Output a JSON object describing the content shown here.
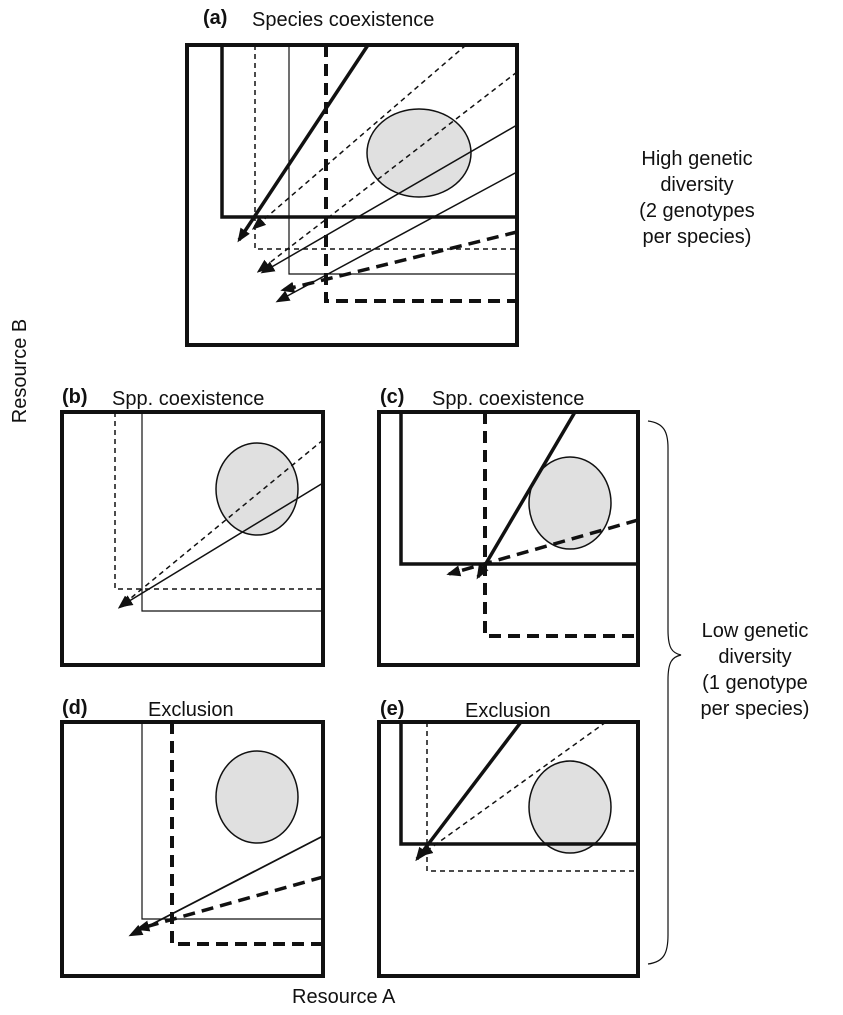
{
  "panels": [
    {
      "id": "a",
      "tag": "(a)",
      "title": "Species coexistence"
    },
    {
      "id": "b",
      "tag": "(b)",
      "title": "Spp. coexistence"
    },
    {
      "id": "c",
      "tag": "(c)",
      "title": "Spp. coexistence"
    },
    {
      "id": "d",
      "tag": "(d)",
      "title": "Exclusion"
    },
    {
      "id": "e",
      "tag": "(e)",
      "title": "Exclusion"
    }
  ],
  "side_labels": {
    "high": [
      "High genetic",
      "diversity",
      "(2 genotypes",
      "per species)"
    ],
    "low": [
      "Low genetic",
      "diversity",
      "(1 genotype",
      "per species)"
    ]
  },
  "axes": {
    "x": "Resource A",
    "y": "Resource B"
  },
  "colors": {
    "line": "#111111",
    "ellipse_fill": "#e0e0e0"
  }
}
